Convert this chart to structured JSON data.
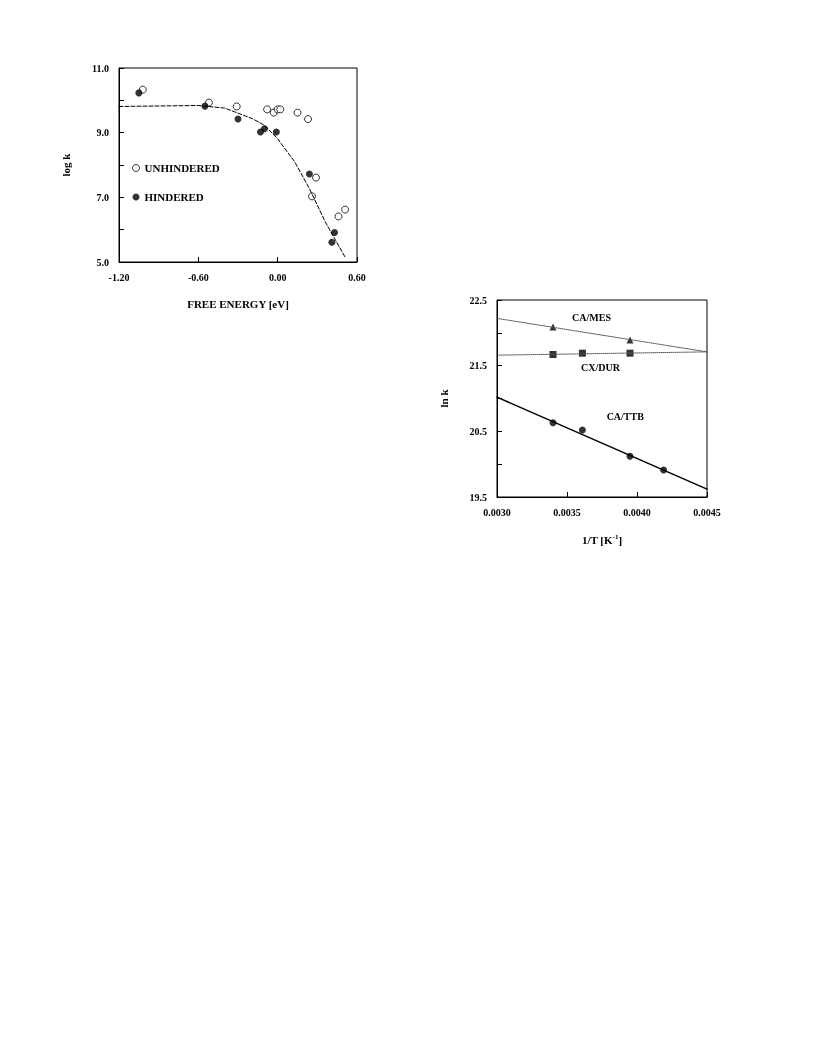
{
  "chart_data": [
    {
      "type": "scatter",
      "xlabel": "FREE ENERGY [eV]",
      "ylabel": "log k",
      "xlim": [
        -1.2,
        0.6
      ],
      "ylim": [
        5,
        11
      ],
      "xticks": [
        {
          "value": -1.2,
          "label": "-1.20"
        },
        {
          "value": -0.6,
          "label": "-0.60"
        },
        {
          "value": 0,
          "label": "0.00"
        },
        {
          "value": 0.6,
          "label": "0.60"
        }
      ],
      "yticks": [
        {
          "value": 5,
          "label": "5.0"
        },
        {
          "value": 6,
          "label": null
        },
        {
          "value": 7,
          "label": "7.0"
        },
        {
          "value": 8,
          "label": null
        },
        {
          "value": 9,
          "label": "9.0"
        },
        {
          "value": 10,
          "label": null
        },
        {
          "value": 11,
          "label": "11.0"
        }
      ],
      "grid": false,
      "legend": "left",
      "series": [
        {
          "name": "UNHINDERED",
          "marker": "circle",
          "color": "#000000",
          "x": [
            -1.02,
            -0.52,
            -0.31,
            -0.08,
            -0.03,
            0.0,
            0.02,
            0.15,
            0.23,
            0.29,
            0.26,
            0.46,
            0.51
          ],
          "values": [
            10.33,
            9.93,
            9.81,
            9.72,
            9.62,
            9.72,
            9.72,
            9.62,
            9.42,
            7.61,
            7.03,
            6.41,
            6.62
          ]
        },
        {
          "name": "HINDERED",
          "marker": "circle",
          "color": "#000000",
          "x": [
            -1.05,
            -0.55,
            -0.3,
            -0.13,
            -0.1,
            -0.01,
            0.24,
            0.43,
            0.41
          ],
          "values": [
            10.23,
            9.82,
            9.42,
            9.02,
            9.12,
            9.02,
            7.72,
            5.91,
            5.61
          ]
        },
        {
          "type": "line",
          "marker": "none",
          "line_style": "dashed",
          "color": "#000000",
          "x": [
            -1.2,
            -0.6,
            -0.4,
            -0.19,
            -0.1,
            0.0,
            0.13,
            0.24,
            0.36,
            0.51
          ],
          "values": [
            9.81,
            9.84,
            9.76,
            9.43,
            9.23,
            8.81,
            8.09,
            7.27,
            6.24,
            5.15
          ]
        }
      ]
    },
    {
      "type": "scatter",
      "xlabel": "1/T [K$^{-1}$]",
      "ylabel": "ln k",
      "xlim": [
        0.003,
        0.0045
      ],
      "ylim": [
        19.5,
        22.5
      ],
      "xticks": [
        {
          "value": 0.003,
          "label": "0.0030"
        },
        {
          "value": 0.0035,
          "label": "0.0035"
        },
        {
          "value": 0.004,
          "label": "0.0040"
        },
        {
          "value": 0.0045,
          "label": "0.0045"
        }
      ],
      "yticks": [
        {
          "value": 19.5,
          "label": "19.5"
        },
        {
          "value": 20,
          "label": null
        },
        {
          "value": 20.5,
          "label": "20.5"
        },
        {
          "value": 21,
          "label": null
        },
        {
          "value": 21.5,
          "label": "21.5"
        },
        {
          "value": 22,
          "label": null
        },
        {
          "value": 22.5,
          "label": "22.5"
        }
      ],
      "grid": false,
      "legend": false,
      "series": [
        {
          "name": "CA/MES",
          "marker": "triangle",
          "color": "#000000",
          "x": [
            0.0034,
            0.00395
          ],
          "values": [
            22.09,
            21.89
          ]
        },
        {
          "name": "CX/DUR",
          "marker": "square",
          "color": "#000000",
          "x": [
            0.0034,
            0.00361,
            0.00395
          ],
          "values": [
            21.67,
            21.69,
            21.69
          ]
        },
        {
          "name": "CA/TTB",
          "marker": "circle",
          "color": "#000000",
          "x": [
            0.0034,
            0.00361,
            0.00395,
            0.00419
          ],
          "values": [
            20.63,
            20.52,
            20.12,
            19.91
          ]
        },
        {
          "type": "line",
          "marker": "none",
          "line_style": "dotted",
          "color": "#555555",
          "x": [
            0.003,
            0.0045
          ],
          "values": [
            22.22,
            21.71
          ]
        },
        {
          "type": "line",
          "marker": "none",
          "line_style": "dotted",
          "color": "#555555",
          "x": [
            0.003,
            0.0045
          ],
          "values": [
            21.66,
            21.71
          ]
        },
        {
          "type": "line",
          "marker": "none",
          "line_style": "solid",
          "color": "#000000",
          "x": [
            0.003,
            0.0045
          ],
          "values": [
            21.02,
            19.62
          ]
        }
      ]
    }
  ]
}
